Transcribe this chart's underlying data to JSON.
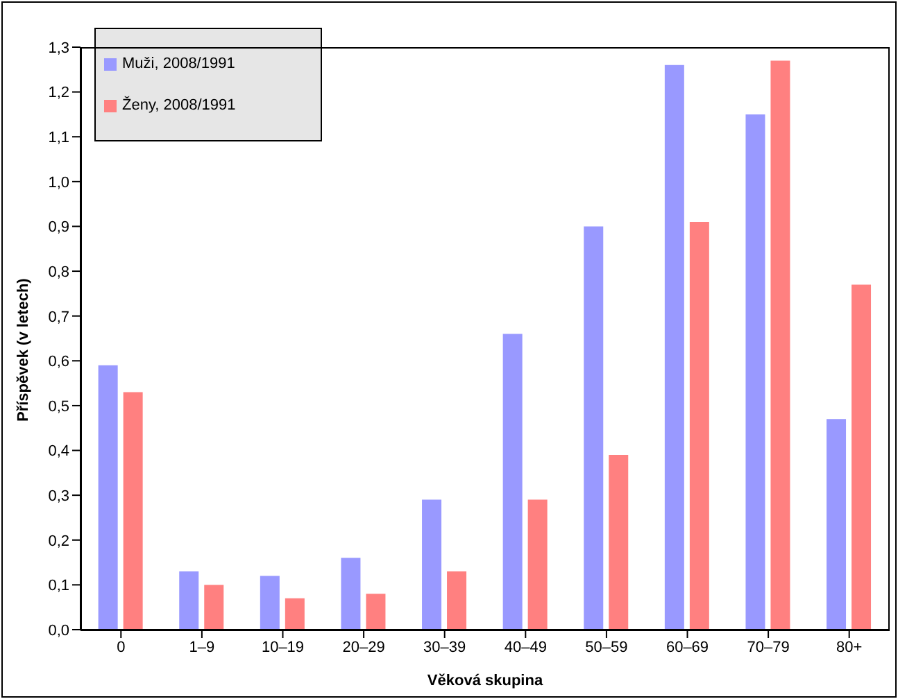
{
  "chart_data": {
    "type": "bar",
    "xlabel": "Věková skupina",
    "ylabel": "Příspěvek (v letech)",
    "categories": [
      "0",
      "1–9",
      "10–19",
      "20–29",
      "30–39",
      "40–49",
      "50–59",
      "60–69",
      "70–79",
      "80+"
    ],
    "series": [
      {
        "name": "Muži, 2008/1991",
        "color": "#9999ff",
        "values": [
          0.59,
          0.13,
          0.12,
          0.16,
          0.29,
          0.66,
          0.9,
          1.26,
          1.15,
          0.47
        ]
      },
      {
        "name": "Ženy, 2008/1991",
        "color": "#ff8080",
        "values": [
          0.53,
          0.1,
          0.07,
          0.08,
          0.13,
          0.29,
          0.39,
          0.91,
          1.27,
          0.77
        ]
      }
    ],
    "ylim": [
      0,
      1.3
    ],
    "yticks": [
      {
        "value": 0,
        "label": "0,0"
      },
      {
        "value": 0.1,
        "label": "0,1"
      },
      {
        "value": 0.2,
        "label": "0,2"
      },
      {
        "value": 0.3,
        "label": "0,3"
      },
      {
        "value": 0.4,
        "label": "0,4"
      },
      {
        "value": 0.5,
        "label": "0,5"
      },
      {
        "value": 0.6,
        "label": "0,6"
      },
      {
        "value": 0.7,
        "label": "0,7"
      },
      {
        "value": 0.8,
        "label": "0,8"
      },
      {
        "value": 0.9,
        "label": "0,9"
      },
      {
        "value": 1.0,
        "label": "1,0"
      },
      {
        "value": 1.1,
        "label": "1,1"
      },
      {
        "value": 1.2,
        "label": "1,2"
      },
      {
        "value": 1.3,
        "label": "1,3"
      }
    ],
    "grid": false,
    "legend": "top left"
  }
}
